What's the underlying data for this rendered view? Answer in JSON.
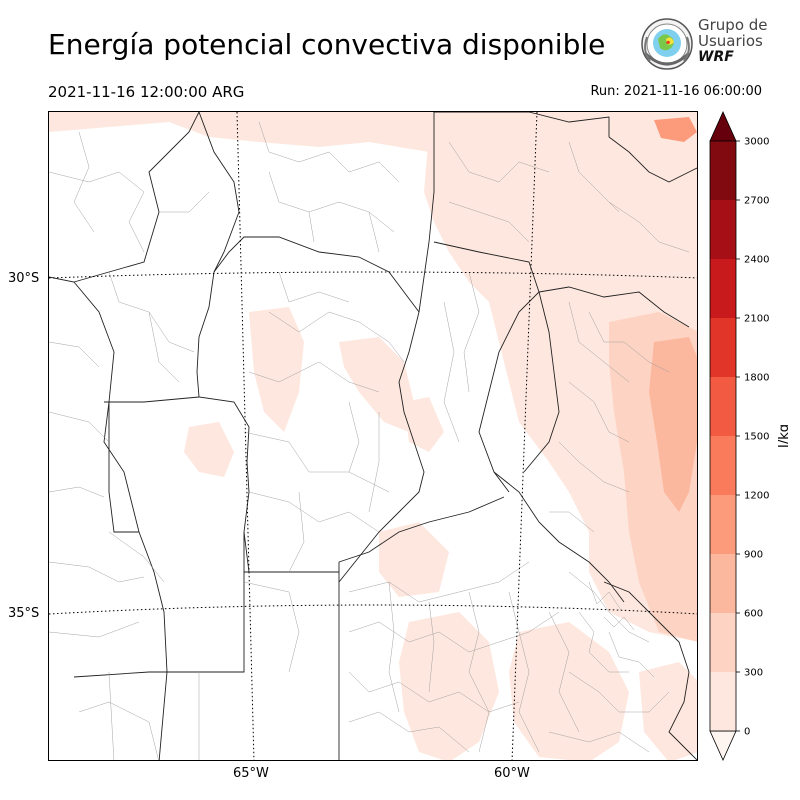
{
  "header": {
    "title": "Energía potencial convectiva disponible",
    "valid_time": "2021-11-16 12:00:00 ARG",
    "run_time": "Run: 2021-11-16 06:00:00"
  },
  "logo": {
    "line1": "Grupo de",
    "line2": "Usuarios",
    "line3": "WRF"
  },
  "map": {
    "lat_labels": [
      "30°S",
      "35°S"
    ],
    "lon_labels": [
      "65°W",
      "60°W"
    ]
  },
  "colorbar": {
    "unit": "J/kg",
    "ticks": [
      "0",
      "300",
      "600",
      "900",
      "1200",
      "1500",
      "1800",
      "2100",
      "2400",
      "2700",
      "3000"
    ],
    "colors": [
      "#fee7de",
      "#fdd3c3",
      "#fcb89e",
      "#fb9b7b",
      "#fa7b5b",
      "#f25a41",
      "#e23529",
      "#c8191d",
      "#a60f15",
      "#800a10"
    ],
    "under_color": "#fff5f0",
    "over_color": "#67000d"
  }
}
